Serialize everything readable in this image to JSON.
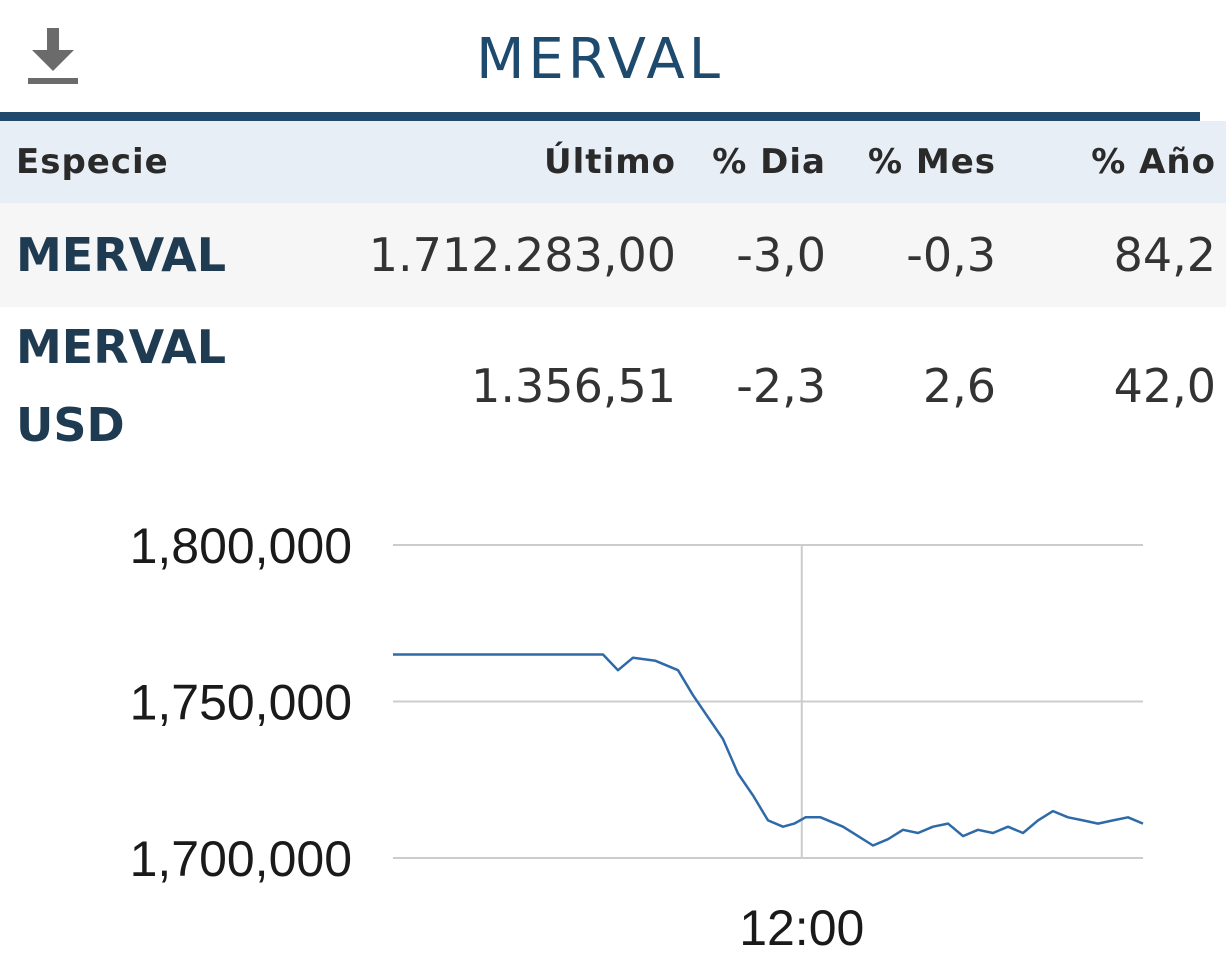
{
  "header": {
    "title": "MERVAL",
    "download_icon": "download-icon"
  },
  "table": {
    "columns": [
      "Especie",
      "Último",
      "% Dia",
      "% Mes",
      "% Año"
    ],
    "rows": [
      {
        "name": "MERVAL",
        "last": "1.712.283,00",
        "day": "-3,0",
        "month": "-0,3",
        "year": "84,2"
      },
      {
        "name_line1": "MERVAL",
        "name_line2": "USD",
        "last": "1.356,51",
        "day": "-2,3",
        "month": "2,6",
        "year": "42,0"
      }
    ]
  },
  "colors": {
    "accent": "#1f4a6c",
    "negative": "#e0393e",
    "positive": "#2a8c2a",
    "series": "#2f6aa8"
  },
  "chart_data": {
    "type": "line",
    "y_tick_labels": [
      "1,800,000",
      "1,750,000",
      "1,700,000"
    ],
    "x_tick_labels": [
      "12:00"
    ],
    "ylim": [
      1700000,
      1800000
    ],
    "grid": true,
    "series": [
      {
        "x": [
          0,
          0.28,
          0.3,
          0.32,
          0.35,
          0.38,
          0.4,
          0.42,
          0.44,
          0.46,
          0.48,
          0.5,
          0.52,
          0.535,
          0.55,
          0.57,
          0.6,
          0.62,
          0.64,
          0.66,
          0.68,
          0.7,
          0.72,
          0.74,
          0.76,
          0.78,
          0.8,
          0.82,
          0.84,
          0.86,
          0.88,
          0.9,
          0.92,
          0.94,
          0.96,
          0.98,
          1.0
        ],
        "values": [
          1765000,
          1765000,
          1760000,
          1764000,
          1763000,
          1760000,
          1752000,
          1745000,
          1738000,
          1727000,
          1720000,
          1712000,
          1710000,
          1711000,
          1713000,
          1713000,
          1710000,
          1707000,
          1704000,
          1706000,
          1709000,
          1708000,
          1710000,
          1711000,
          1707000,
          1709000,
          1708000,
          1710000,
          1708000,
          1712000,
          1715000,
          1713000,
          1712000,
          1711000,
          1712000,
          1713000,
          1711000
        ]
      }
    ]
  }
}
